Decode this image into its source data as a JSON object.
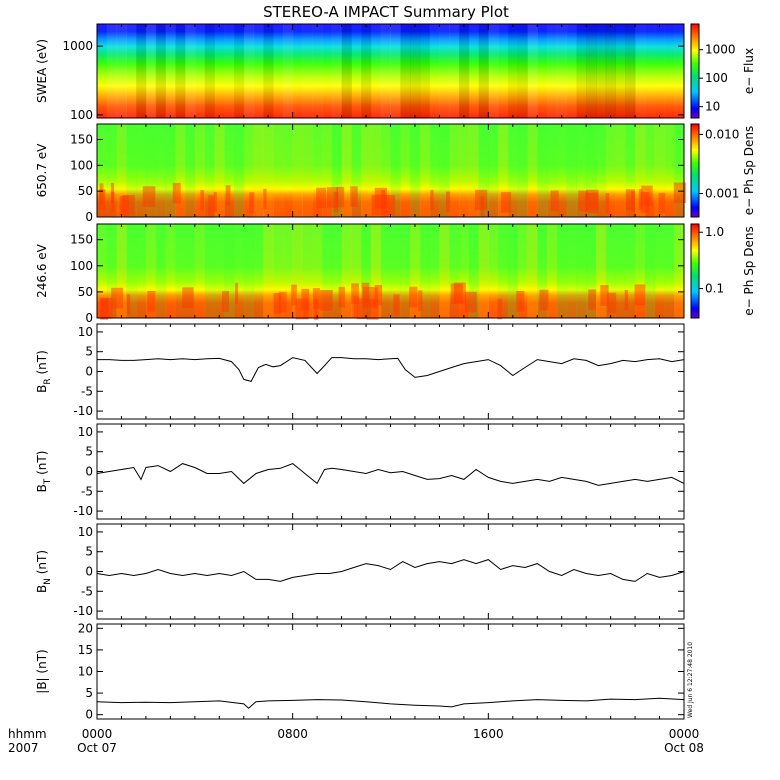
{
  "title": "STEREO-A IMPACT Summary Plot",
  "footer": {
    "axis_label": "hhmm",
    "year": "2007",
    "stamp": "Wed Jun  6 12:27:48 2010"
  },
  "chart_data": [
    {
      "type": "heatmap",
      "name": "SWEA spectrogram",
      "ylabel": "SWEA (eV)",
      "yscale": "log",
      "ylim": [
        90,
        2100
      ],
      "yticks": [
        {
          "value": 100,
          "label": "100"
        },
        {
          "value": 1000,
          "label": "1000"
        }
      ],
      "colorbar": {
        "label": "e− Flux",
        "scale": "log",
        "range": [
          4,
          8000
        ],
        "ticks": [
          {
            "value": 10,
            "label": "10"
          },
          {
            "value": 100,
            "label": "100"
          },
          {
            "value": 1000,
            "label": "1000"
          }
        ]
      }
    },
    {
      "type": "heatmap",
      "name": "650.7 eV pitch angle distribution",
      "ylabel": "650.7 eV",
      "ylim": [
        0,
        180
      ],
      "yticks": [
        {
          "value": 0,
          "label": "0"
        },
        {
          "value": 50,
          "label": "50"
        },
        {
          "value": 100,
          "label": "100"
        },
        {
          "value": 150,
          "label": "150"
        }
      ],
      "colorbar": {
        "label": "e− Ph Sp Dens",
        "scale": "log",
        "range": [
          0.0004,
          0.015
        ],
        "ticks": [
          {
            "value": 0.001,
            "label": "0.001"
          },
          {
            "value": 0.01,
            "label": "0.010"
          }
        ]
      }
    },
    {
      "type": "heatmap",
      "name": "246.6 eV pitch angle distribution",
      "ylabel": "246.6 eV",
      "ylim": [
        0,
        180
      ],
      "yticks": [
        {
          "value": 0,
          "label": "0"
        },
        {
          "value": 50,
          "label": "50"
        },
        {
          "value": 100,
          "label": "100"
        },
        {
          "value": 150,
          "label": "150"
        }
      ],
      "colorbar": {
        "label": "e− Ph Sp Dens",
        "scale": "log",
        "range": [
          0.03,
          1.4
        ],
        "ticks": [
          {
            "value": 0.1,
            "label": "0.1"
          },
          {
            "value": 1.0,
            "label": "1.0"
          }
        ]
      }
    },
    {
      "type": "line",
      "name": "BR",
      "ylabel": "B",
      "ylabel_sub": "R",
      "ylabel_unit": " (nT)",
      "ylim": [
        -12,
        12
      ],
      "yticks": [
        -10,
        -5,
        0,
        5,
        10
      ],
      "x": [
        0,
        0.5,
        1,
        1.5,
        2,
        2.5,
        3,
        3.5,
        4,
        4.5,
        5,
        5.5,
        5.8,
        6,
        6.3,
        6.6,
        6.9,
        7.2,
        7.5,
        8,
        8.5,
        9,
        9.3,
        9.6,
        10,
        10.5,
        11,
        11.5,
        12,
        12.3,
        12.6,
        13,
        13.5,
        14,
        14.5,
        15,
        15.5,
        16,
        16.5,
        17,
        17.5,
        18,
        18.5,
        19,
        19.5,
        20,
        20.5,
        21,
        21.5,
        22,
        22.5,
        23,
        23.5,
        24
      ],
      "values": [
        3,
        3,
        2.8,
        2.8,
        3,
        3.2,
        3,
        3.2,
        3,
        3.2,
        3.3,
        2.5,
        0.5,
        -2,
        -2.5,
        1,
        1.8,
        1.2,
        1.5,
        3.5,
        2.8,
        -0.5,
        1.5,
        3.5,
        3.5,
        3.2,
        3.2,
        3,
        3.2,
        3.3,
        0.5,
        -1.5,
        -1,
        0,
        1,
        2,
        2.5,
        3,
        1.5,
        -1,
        1,
        3,
        2.5,
        2,
        3.2,
        2.8,
        1.5,
        2,
        2.8,
        2.5,
        3,
        3.2,
        2.5,
        3
      ]
    },
    {
      "type": "line",
      "name": "BT",
      "ylabel": "B",
      "ylabel_sub": "T",
      "ylabel_unit": " (nT)",
      "ylim": [
        -12,
        12
      ],
      "yticks": [
        -10,
        -5,
        0,
        5,
        10
      ],
      "x": [
        0,
        0.5,
        1,
        1.5,
        1.8,
        2,
        2.5,
        3,
        3.5,
        4,
        4.5,
        5,
        5.5,
        6,
        6.5,
        7,
        7.5,
        8,
        8.3,
        8.6,
        9,
        9.3,
        9.6,
        10,
        10.5,
        11,
        11.5,
        12,
        12.5,
        13,
        13.5,
        14,
        14.5,
        15,
        15.5,
        16,
        16.5,
        17,
        17.5,
        18,
        18.5,
        19,
        19.5,
        20,
        20.5,
        21,
        21.5,
        22,
        22.5,
        23,
        23.5,
        24
      ],
      "values": [
        -0.5,
        0,
        0.5,
        1,
        -2,
        1,
        1.5,
        0,
        2,
        1,
        -0.5,
        -0.5,
        0,
        -3,
        -0.5,
        0.5,
        0.8,
        2,
        0.5,
        -1,
        -3,
        0.5,
        0.8,
        0.5,
        0,
        -0.5,
        0.5,
        -0.3,
        0,
        -1,
        -2,
        -1.8,
        -1,
        -2,
        0.5,
        -1.5,
        -2.5,
        -3,
        -2.5,
        -2,
        -2.5,
        -1.5,
        -2,
        -2.5,
        -3.5,
        -3,
        -2.5,
        -2,
        -2.5,
        -2,
        -1.5,
        -3
      ]
    },
    {
      "type": "line",
      "name": "BN",
      "ylabel": "B",
      "ylabel_sub": "N",
      "ylabel_unit": " (nT)",
      "ylim": [
        -12,
        12
      ],
      "yticks": [
        -10,
        -5,
        0,
        5,
        10
      ],
      "x": [
        0,
        0.5,
        1,
        1.5,
        2,
        2.5,
        3,
        3.5,
        4,
        4.5,
        5,
        5.5,
        6,
        6.5,
        7,
        7.5,
        8,
        8.5,
        9,
        9.5,
        10,
        10.5,
        11,
        11.5,
        12,
        12.5,
        13,
        13.5,
        14,
        14.5,
        15,
        15.5,
        16,
        16.5,
        17,
        17.5,
        18,
        18.5,
        19,
        19.5,
        20,
        20.5,
        21,
        21.5,
        22,
        22.5,
        23,
        23.5,
        24
      ],
      "values": [
        -0.5,
        -1,
        -0.5,
        -1,
        -0.5,
        0.5,
        -0.5,
        -1,
        -0.5,
        -1,
        -0.5,
        -1,
        0,
        -2,
        -2,
        -2.5,
        -1.5,
        -1,
        -0.5,
        -0.5,
        0,
        1,
        2,
        1.5,
        0.5,
        2.5,
        1,
        2,
        2.5,
        2,
        3,
        2,
        3,
        0.5,
        1.5,
        1,
        2,
        0,
        -1,
        0.5,
        -0.5,
        -1,
        -0.5,
        -2,
        -2.5,
        -0.5,
        -1.5,
        -1,
        0
      ]
    },
    {
      "type": "line",
      "name": "|B|",
      "ylabel": "|B| (nT)",
      "ylim": [
        -1,
        21
      ],
      "yticks": [
        0,
        5,
        10,
        15,
        20
      ],
      "x": [
        0,
        1,
        2,
        3,
        4,
        5,
        6,
        6.2,
        6.5,
        7,
        8,
        9,
        10,
        11,
        12,
        13,
        14,
        14.5,
        15,
        16,
        17,
        18,
        19,
        20,
        21,
        22,
        23,
        24
      ],
      "values": [
        3,
        2.8,
        2.9,
        2.8,
        3,
        3.2,
        2.5,
        1.5,
        3,
        3.2,
        3.3,
        3.5,
        3.4,
        3,
        2.5,
        2.2,
        2,
        1.8,
        2.5,
        2.8,
        3.2,
        3.5,
        3.3,
        3.2,
        3.6,
        3.5,
        3.8,
        3.5
      ]
    }
  ],
  "time_axis": {
    "ticks": [
      {
        "hour": 0,
        "label": "0000",
        "date": "Oct 07"
      },
      {
        "hour": 8,
        "label": "0800",
        "date": ""
      },
      {
        "hour": 16,
        "label": "1600",
        "date": ""
      },
      {
        "hour": 24,
        "label": "0000",
        "date": "Oct 08"
      }
    ],
    "range_hours": [
      0,
      24
    ]
  }
}
